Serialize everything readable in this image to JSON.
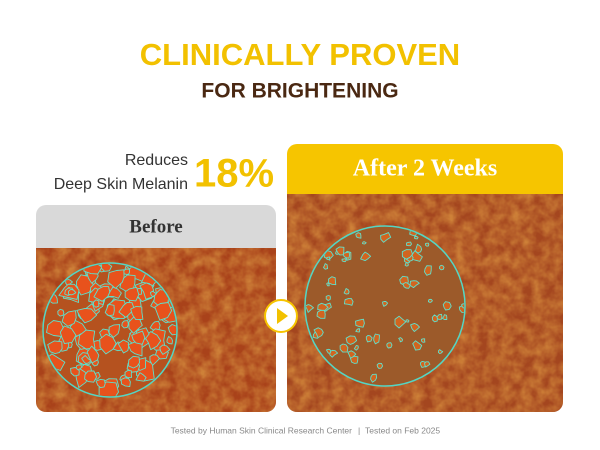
{
  "header": {
    "title": "CLINICALLY PROVEN",
    "subtitle": "FOR BRIGHTENING"
  },
  "claim": {
    "line1": "Reduces",
    "line2": "Deep Skin Melanin",
    "figure": "18%"
  },
  "panels": [
    {
      "label": "Before"
    },
    {
      "label": "After 2 Weeks"
    }
  ],
  "footer": {
    "left": "Tested by Human Skin Clinical Research Center",
    "right": "Tested on Feb 2025"
  }
}
